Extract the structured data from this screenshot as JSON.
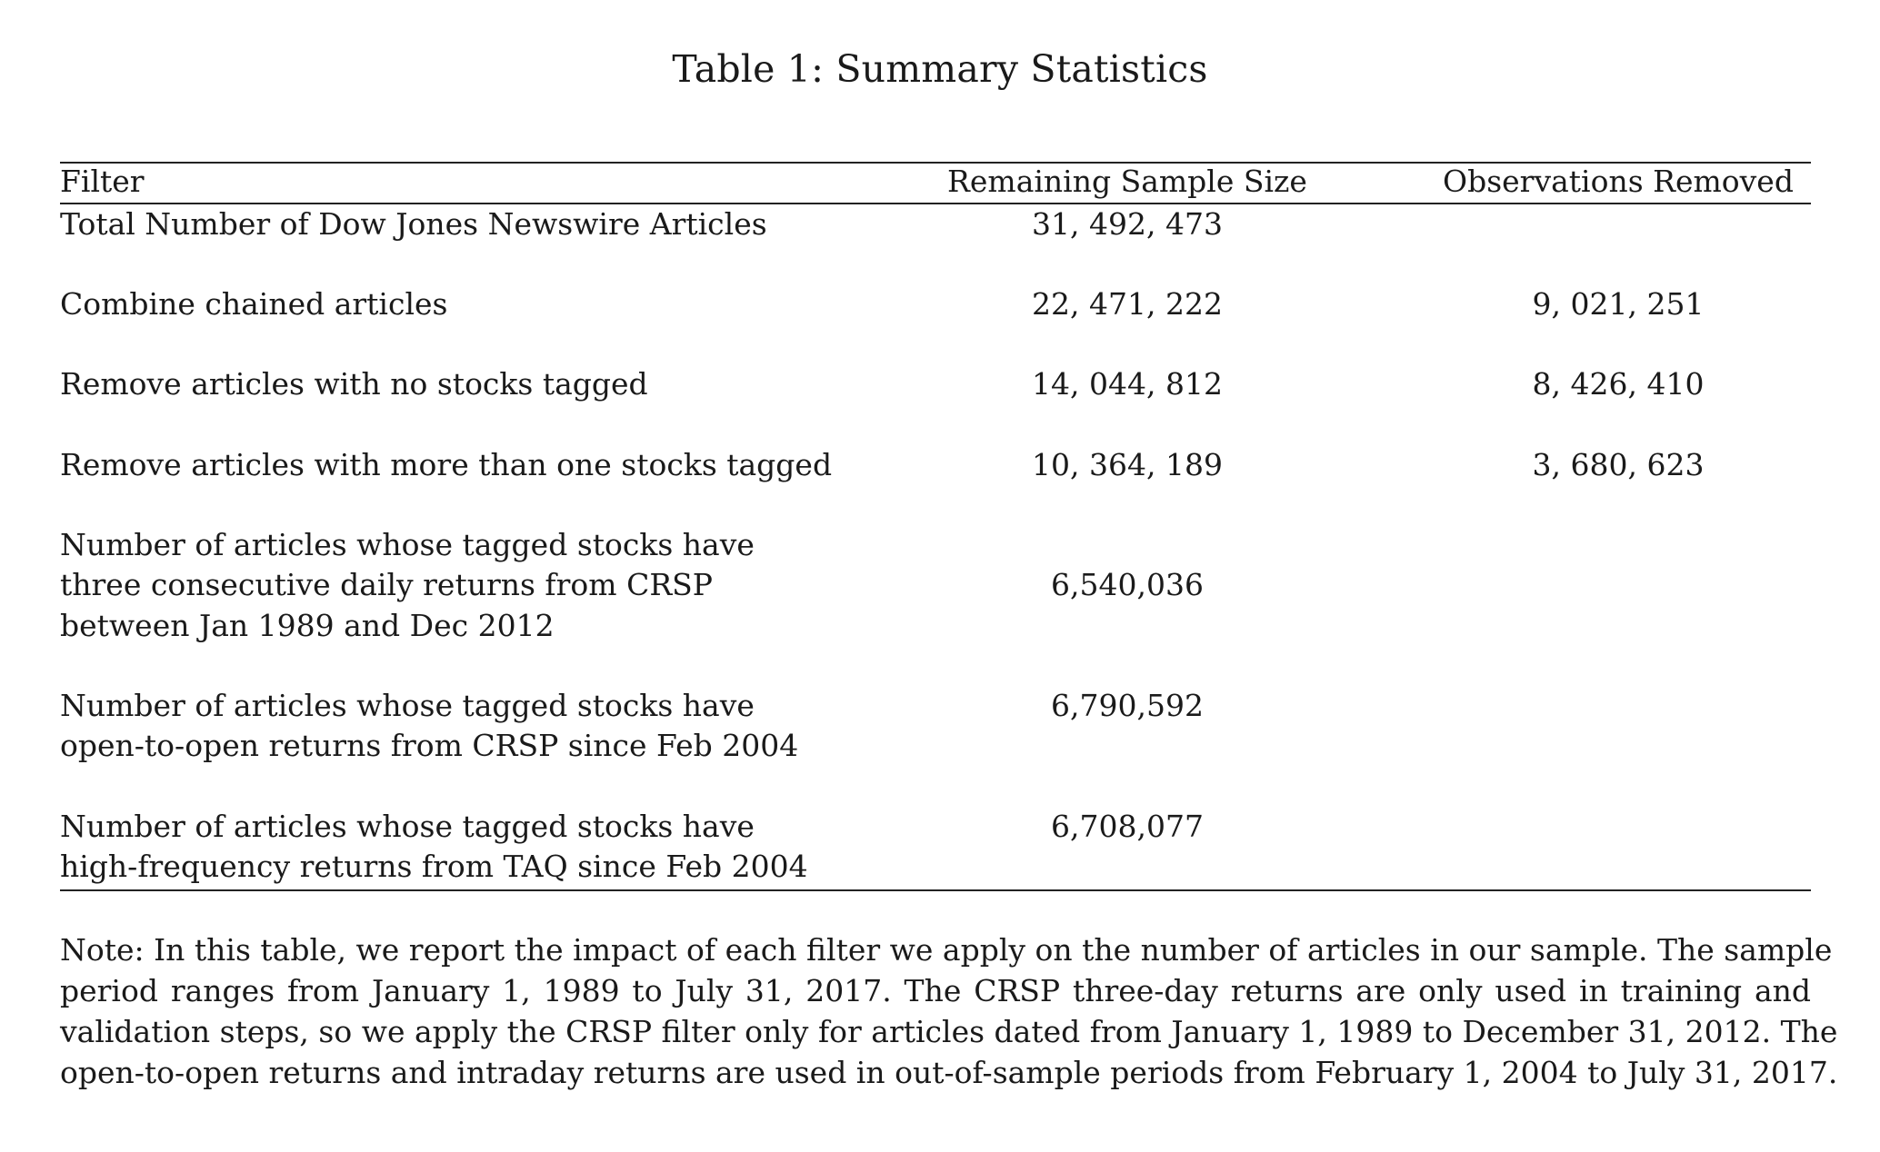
{
  "caption": "Table 1: Summary Statistics",
  "table": {
    "headers": [
      "Filter",
      "Remaining Sample Size",
      "Observations Removed"
    ],
    "rows": [
      {
        "filter": [
          "Total Number of Dow Jones Newswire Articles"
        ],
        "remaining": "31, 492, 473",
        "removed": ""
      },
      {
        "filter": [
          "Combine chained articles"
        ],
        "remaining": "22, 471, 222",
        "removed": "9, 021, 251"
      },
      {
        "filter": [
          "Remove articles with no stocks tagged"
        ],
        "remaining": "14, 044, 812",
        "removed": "8, 426, 410"
      },
      {
        "filter": [
          "Remove articles with more than one stocks tagged"
        ],
        "remaining": "10, 364, 189",
        "removed": "3, 680, 623"
      },
      {
        "filter": [
          "Number of articles whose tagged stocks have",
          "three consecutive daily returns from CRSP",
          "between Jan 1989 and Dec 2012"
        ],
        "remaining": "6,540,036",
        "removed": ""
      },
      {
        "filter": [
          "Number of articles whose tagged stocks have",
          "open-to-open returns from CRSP since Feb 2004"
        ],
        "remaining": "6,790,592",
        "removed": ""
      },
      {
        "filter": [
          "Number of articles whose tagged stocks have",
          "high-frequency returns from TAQ since Feb 2004"
        ],
        "remaining": "6,708,077",
        "removed": ""
      }
    ]
  },
  "note": [
    "Note: In this table, we report the impact of each filter we apply on the number of articles in our sample. The sample",
    "period ranges from January 1, 1989 to July 31, 2017. The CRSP three-day returns are only used in training and",
    "validation steps, so we apply the CRSP filter only for articles dated from January 1, 1989 to December 31, 2012. The",
    "open-to-open returns and intraday returns are used in out-of-sample periods from February 1, 2004 to July 31, 2017."
  ]
}
